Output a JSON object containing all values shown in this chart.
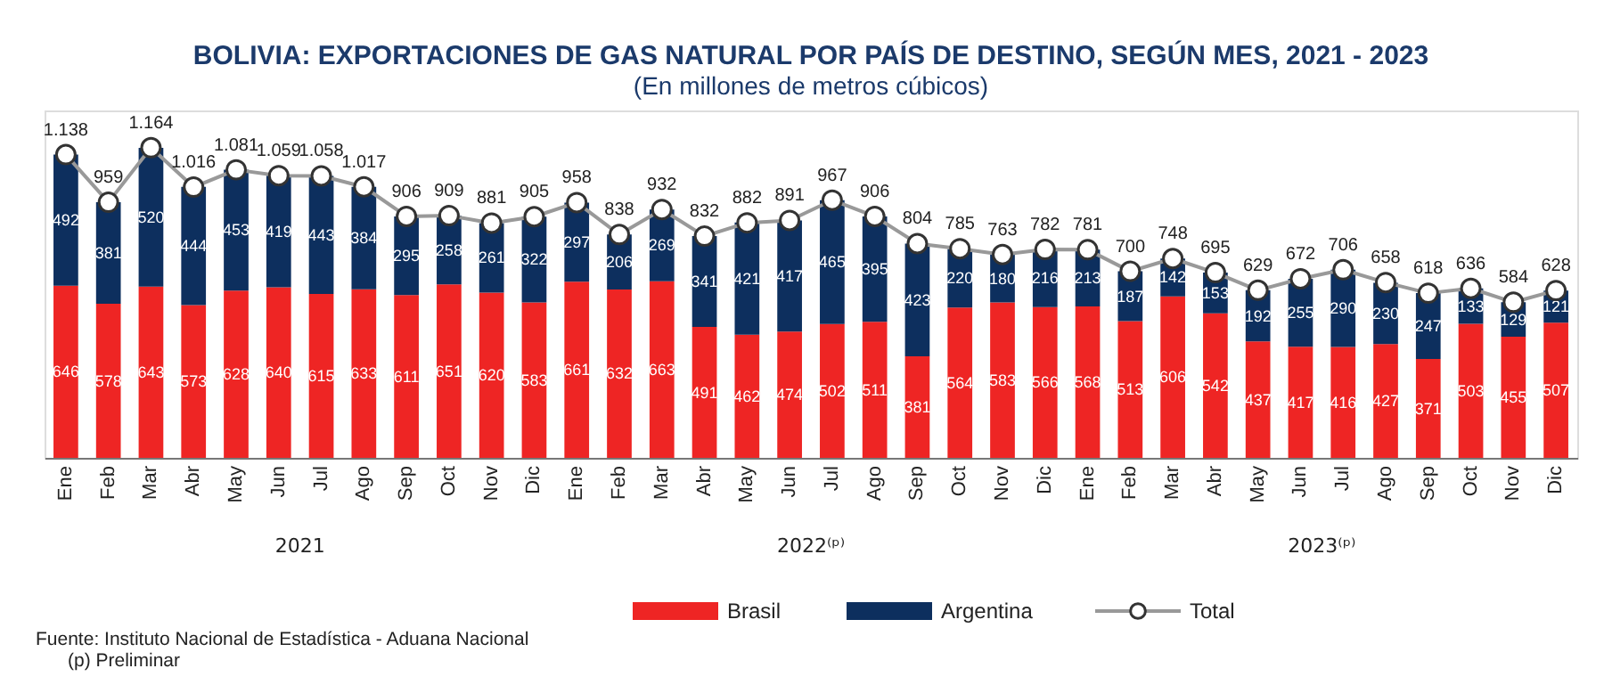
{
  "chart_data": {
    "type": "bar",
    "stacked": true,
    "data_labels": true,
    "legend": "bottom",
    "grid": false,
    "title": "BOLIVIA: EXPORTACIONES DE GAS NATURAL POR PAÍS DE DESTINO, SEGÚN MES, 2021 - 2023",
    "subtitle": "(En millones de metros cúbicos)",
    "categories": [
      "Ene",
      "Feb",
      "Mar",
      "Abr",
      "May",
      "Jun",
      "Jul",
      "Ago",
      "Sep",
      "Oct",
      "Nov",
      "Dic",
      "Ene",
      "Feb",
      "Mar",
      "Abr",
      "May",
      "Jun",
      "Jul",
      "Ago",
      "Sep",
      "Oct",
      "Nov",
      "Dic",
      "Ene",
      "Feb",
      "Mar",
      "Abr",
      "May",
      "Jun",
      "Jul",
      "Ago",
      "Sep",
      "Oct",
      "Nov",
      "Dic"
    ],
    "series": [
      {
        "name": "Brasil",
        "color": "#ee2524",
        "values": [
          646,
          578,
          643,
          573,
          628,
          640,
          615,
          633,
          611,
          651,
          620,
          583,
          661,
          632,
          663,
          491,
          462,
          474,
          502,
          511,
          381,
          564,
          583,
          566,
          568,
          513,
          606,
          542,
          437,
          417,
          416,
          427,
          371,
          503,
          455,
          507
        ]
      },
      {
        "name": "Argentina",
        "color": "#0d2f5e",
        "values": [
          492,
          381,
          520,
          444,
          453,
          419,
          443,
          384,
          295,
          258,
          261,
          322,
          297,
          206,
          269,
          341,
          421,
          417,
          465,
          395,
          423,
          220,
          180,
          216,
          213,
          187,
          142,
          153,
          192,
          255,
          290,
          230,
          247,
          133,
          129,
          121
        ]
      },
      {
        "name": "Total",
        "type": "line",
        "color": "#999999",
        "marker": "circle",
        "values": [
          1138,
          959,
          1164,
          1016,
          1081,
          1059,
          1058,
          1017,
          906,
          909,
          881,
          905,
          958,
          838,
          932,
          832,
          882,
          891,
          967,
          906,
          804,
          785,
          763,
          782,
          781,
          700,
          748,
          695,
          629,
          672,
          706,
          658,
          618,
          636,
          584,
          628
        ],
        "value_labels": [
          "1.138",
          "959",
          "1.164",
          "1.016",
          "1.081",
          "1.059",
          "1.058",
          "1.017",
          "906",
          "909",
          "881",
          "905",
          "958",
          "838",
          "932",
          "832",
          "882",
          "891",
          "967",
          "906",
          "804",
          "785",
          "763",
          "782",
          "781",
          "700",
          "748",
          "695",
          "629",
          "672",
          "706",
          "658",
          "618",
          "636",
          "584",
          "628"
        ]
      }
    ],
    "annotations": [
      "2021",
      "2022⁽ᵖ⁾",
      "2023⁽ᵖ⁾",
      "Fuente: Instituto Nacional de Estadística - Aduana Nacional",
      "(p) Preliminar"
    ]
  }
}
